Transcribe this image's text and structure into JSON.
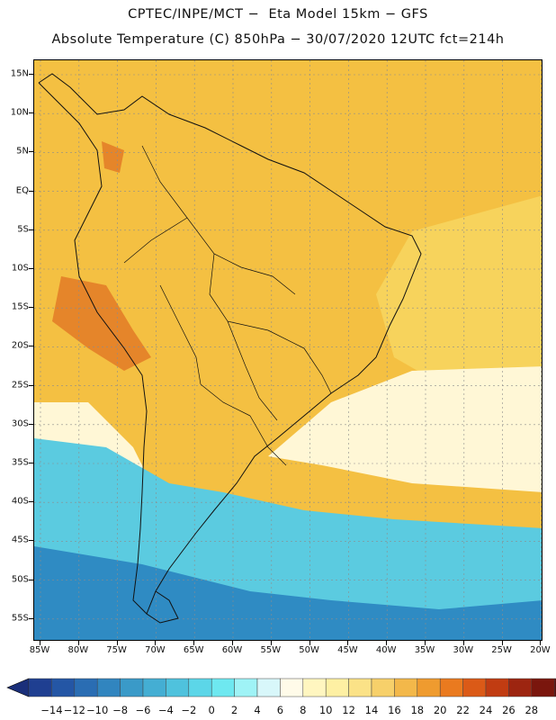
{
  "title": {
    "line1": "CPTEC/INPE/MCT −  Eta Model 15km − GFS",
    "line2": "Absolute Temperature (C) 850hPa − 30/07/2020 12UTC fct=214h"
  },
  "lat_labels": [
    "15N",
    "10N",
    "5N",
    "EQ",
    "5S",
    "10S",
    "15S",
    "20S",
    "25S",
    "30S",
    "35S",
    "40S",
    "45S",
    "50S",
    "55S"
  ],
  "lon_labels": [
    "85W",
    "80W",
    "75W",
    "70W",
    "65W",
    "60W",
    "55W",
    "50W",
    "45W",
    "40W",
    "35W",
    "30W",
    "25W",
    "20W"
  ],
  "colorbar": {
    "labels": [
      "−14",
      "−12",
      "−10",
      "−8",
      "−6",
      "−4",
      "−2",
      "0",
      "2",
      "4",
      "6",
      "8",
      "10",
      "12",
      "14",
      "16",
      "18",
      "20",
      "22",
      "24",
      "26",
      "28"
    ],
    "colors": [
      "#1f3f91",
      "#2456a5",
      "#2a6db3",
      "#3185bf",
      "#3a9ac8",
      "#44aed3",
      "#4fc2dd",
      "#5cd6e8",
      "#6ee8f0",
      "#9ff3f6",
      "#d8f7fa",
      "#fffbe9",
      "#fff6c0",
      "#fef0a3",
      "#fbe287",
      "#f7d06a",
      "#f3b84a",
      "#ef9b2f",
      "#ea7a1f",
      "#db5a17",
      "#c13c12",
      "#9d2510",
      "#7a160d",
      "#5b0d0b"
    ],
    "low_arrow_color": "#1a2f7a",
    "high_arrow_color": "#6a0a12"
  },
  "map": {
    "ocean_north_color": "#f4c042",
    "continent_color": "#f1ad2e",
    "ocean_mid_color": "#f7d35c",
    "ocean_cool_color": "#fff7d6",
    "andes_hot_color": "#e5852a",
    "cold_sea_color": "#5bcbe0",
    "coldest_sea_color": "#2f8bc3",
    "grid_color": "#8c8c8c",
    "coast_color": "#111111"
  }
}
